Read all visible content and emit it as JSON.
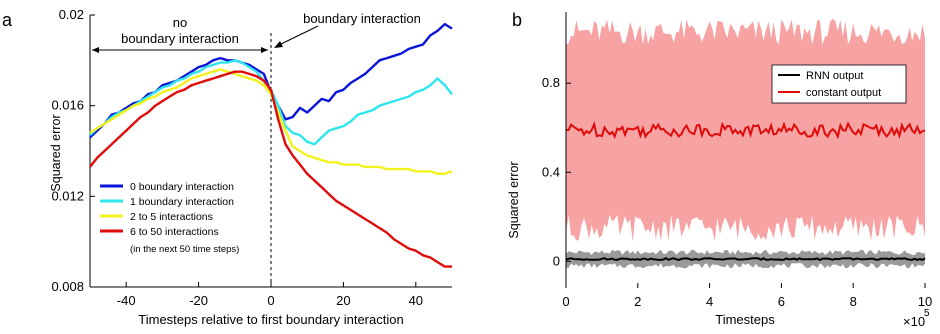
{
  "panel_a_letter": "a",
  "panel_b_letter": "b",
  "colors": {
    "blue": "#0a14d8",
    "cyan": "#2fe6ee",
    "yellow": "#f2f21c",
    "red": "#e00b0b",
    "band_red": "#f7a3a3",
    "band_gray": "#9a9a9a",
    "black": "#000000"
  },
  "chart_data": [
    {
      "type": "line",
      "panel": "a",
      "xlabel": "Timesteps relative to first boundary interaction",
      "ylabel": "Squared error",
      "xlim": [
        -50,
        50
      ],
      "ylim": [
        0.008,
        0.02
      ],
      "xticks": [
        -40,
        -20,
        0,
        20,
        40
      ],
      "xtick_labels": [
        "-40",
        "-20",
        "0",
        "20",
        "40"
      ],
      "yticks": [
        0.008,
        0.012,
        0.016,
        0.02
      ],
      "ytick_labels": [
        "0.008",
        "0.012",
        "0.016",
        "0.02"
      ],
      "annotations": {
        "left_label": [
          "no",
          "boundary interaction"
        ],
        "right_label": "boundary interaction",
        "legend_note": "(in the next 50 time steps)"
      },
      "vline_x": 0,
      "legend_position": "lower-left",
      "x_start": -50,
      "x_step": 2,
      "series": [
        {
          "name": "0  boundary interaction",
          "color": "#0a14d8",
          "values": [
            0.0146,
            0.0149,
            0.0152,
            0.0156,
            0.0157,
            0.0159,
            0.0161,
            0.0162,
            0.0165,
            0.0166,
            0.0169,
            0.017,
            0.0171,
            0.0173,
            0.0175,
            0.0177,
            0.0178,
            0.018,
            0.0181,
            0.018,
            0.018,
            0.0179,
            0.0178,
            0.0176,
            0.0174,
            0.0166,
            0.016,
            0.0154,
            0.0155,
            0.0159,
            0.0157,
            0.016,
            0.0163,
            0.0162,
            0.0166,
            0.0167,
            0.017,
            0.0172,
            0.0174,
            0.0177,
            0.018,
            0.0181,
            0.0182,
            0.0183,
            0.0185,
            0.0186,
            0.0187,
            0.0191,
            0.0193,
            0.0196,
            0.0194
          ]
        },
        {
          "name": "1  boundary interaction",
          "color": "#2fe6ee",
          "values": [
            0.0147,
            0.015,
            0.0152,
            0.0155,
            0.0157,
            0.0158,
            0.016,
            0.0162,
            0.0164,
            0.0166,
            0.0168,
            0.0169,
            0.0171,
            0.0172,
            0.0174,
            0.0175,
            0.0177,
            0.0178,
            0.0179,
            0.0179,
            0.018,
            0.0179,
            0.0177,
            0.0175,
            0.0171,
            0.0167,
            0.016,
            0.0151,
            0.0148,
            0.0147,
            0.0144,
            0.0143,
            0.0146,
            0.0149,
            0.015,
            0.0151,
            0.0153,
            0.0156,
            0.0157,
            0.0158,
            0.016,
            0.0161,
            0.0162,
            0.0163,
            0.0164,
            0.0166,
            0.0167,
            0.0169,
            0.0172,
            0.0169,
            0.0165
          ]
        },
        {
          "name": "2 to  5  interactions",
          "color": "#f2f21c",
          "values": [
            0.0148,
            0.015,
            0.0152,
            0.0154,
            0.0156,
            0.0158,
            0.016,
            0.0161,
            0.0163,
            0.0164,
            0.0166,
            0.0167,
            0.0168,
            0.017,
            0.0172,
            0.0173,
            0.0174,
            0.0175,
            0.0176,
            0.0175,
            0.0174,
            0.0173,
            0.0172,
            0.0171,
            0.0169,
            0.0165,
            0.0157,
            0.0149,
            0.0142,
            0.014,
            0.0138,
            0.0137,
            0.0136,
            0.0135,
            0.0135,
            0.0134,
            0.0134,
            0.0134,
            0.0133,
            0.0133,
            0.0133,
            0.0132,
            0.0132,
            0.0132,
            0.0132,
            0.0131,
            0.0131,
            0.0131,
            0.013,
            0.013,
            0.0131
          ]
        },
        {
          "name": "6 to 50 interactions",
          "color": "#e00b0b",
          "values": [
            0.0133,
            0.0137,
            0.014,
            0.0143,
            0.0146,
            0.0149,
            0.0152,
            0.0155,
            0.0157,
            0.016,
            0.0162,
            0.0164,
            0.0166,
            0.0167,
            0.0169,
            0.017,
            0.0171,
            0.0172,
            0.0173,
            0.0174,
            0.0175,
            0.0175,
            0.0174,
            0.0173,
            0.0171,
            0.0167,
            0.0154,
            0.0143,
            0.0138,
            0.0134,
            0.013,
            0.0127,
            0.0124,
            0.0121,
            0.0118,
            0.0116,
            0.0114,
            0.0112,
            0.011,
            0.0108,
            0.0106,
            0.0104,
            0.0101,
            0.0099,
            0.0097,
            0.0096,
            0.0094,
            0.0093,
            0.0091,
            0.0089,
            0.0089
          ]
        }
      ]
    },
    {
      "type": "line",
      "panel": "b",
      "xlabel": "Timesteps",
      "ylabel": "Squared error",
      "x_multiplier": "×10",
      "x_multiplier_exponent": "5",
      "xlim": [
        0,
        10
      ],
      "ylim": [
        -0.12,
        1.12
      ],
      "xticks": [
        0,
        2,
        4,
        6,
        8,
        10
      ],
      "xtick_labels": [
        "0",
        "2",
        "4",
        "6",
        "8",
        "10"
      ],
      "yticks": [
        0,
        0.4,
        0.8
      ],
      "ytick_labels": [
        "0",
        "0.4",
        "0.8"
      ],
      "legend_position": "top-right",
      "series": [
        {
          "name": "RNN output",
          "color": "#000000",
          "mean": 0.01,
          "band": [
            -0.02,
            0.04
          ],
          "band_color": "#9a9a9a"
        },
        {
          "name": "constant output",
          "color": "#e00b0b",
          "mean": 0.59,
          "band": [
            0.15,
            1.03
          ],
          "band_color": "#f7a3a3"
        }
      ]
    }
  ]
}
